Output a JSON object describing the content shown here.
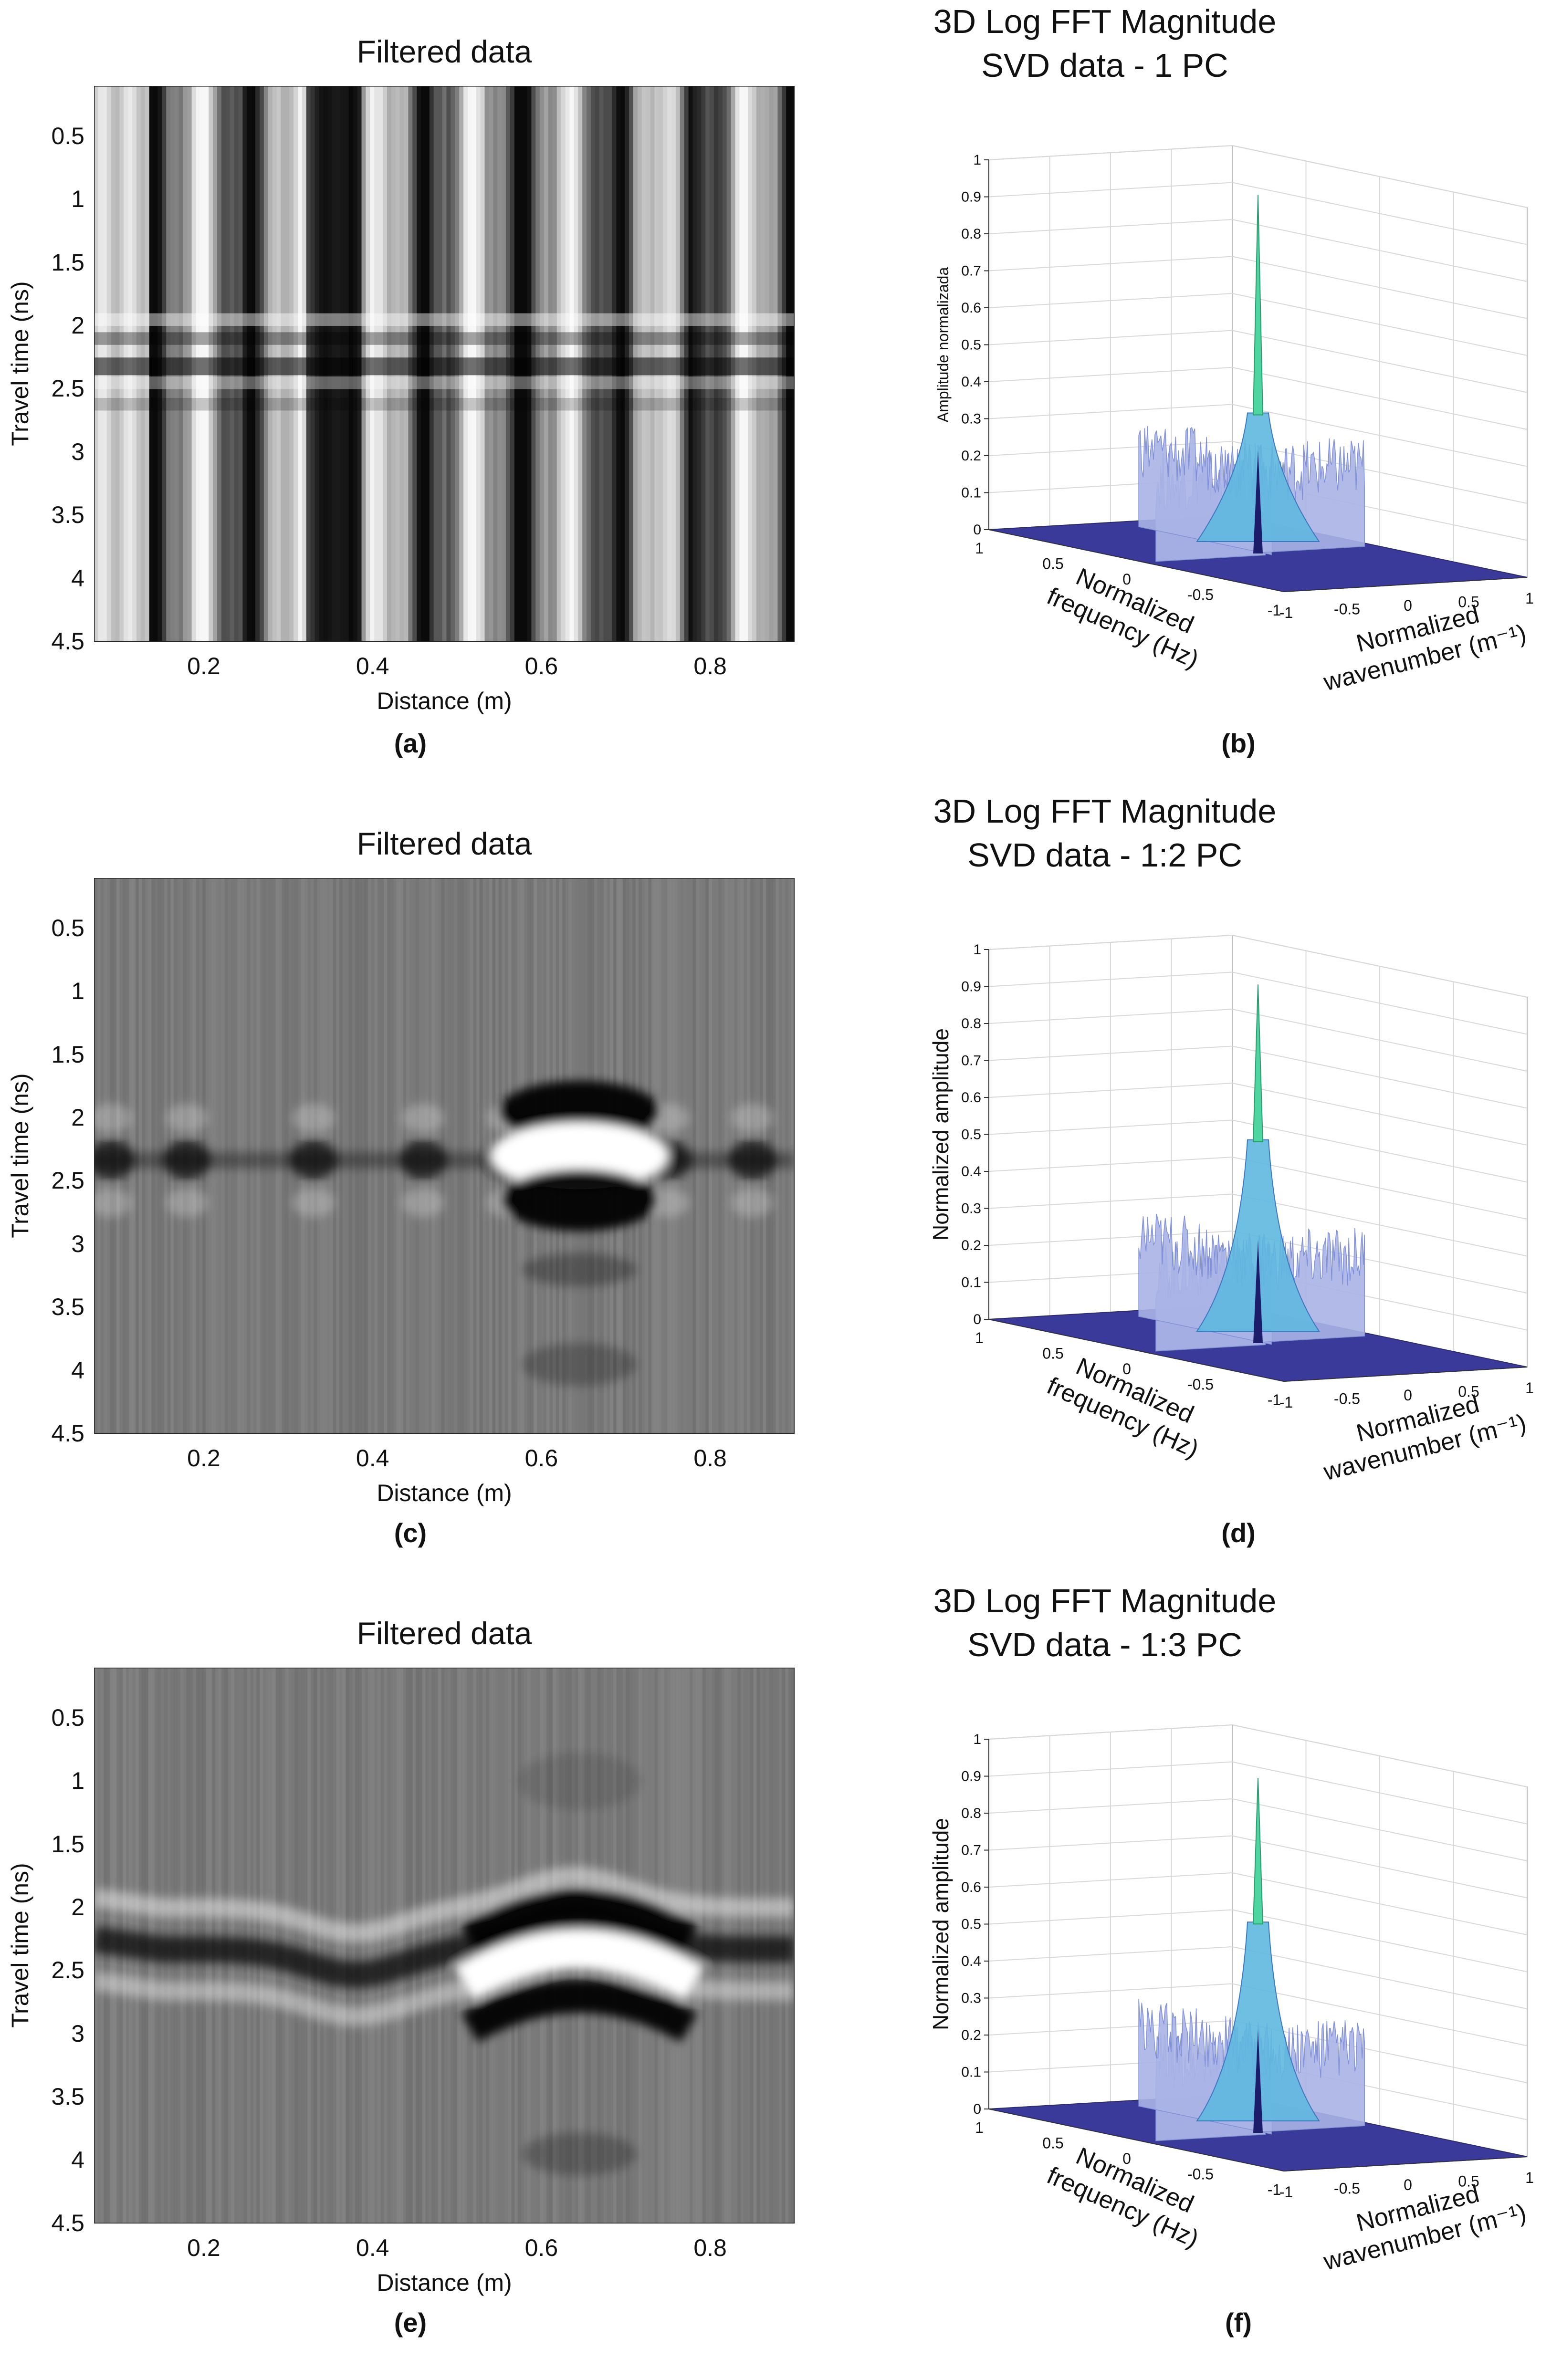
{
  "chart_data": [
    {
      "panel": "a",
      "type": "heatmap",
      "title": "Filtered data",
      "xlabel": "Distance (m)",
      "ylabel": "Travel time (ns)",
      "xlim": [
        0.07,
        0.9
      ],
      "ylim": [
        0.1,
        4.5
      ],
      "xticks": [
        "0.2",
        "0.4",
        "0.6",
        "0.8"
      ],
      "yticks": [
        "0.5",
        "1",
        "1.5",
        "2",
        "2.5",
        "3",
        "3.5",
        "4",
        "4.5"
      ],
      "colormap": "gray",
      "description_key": "strong vertical banding, horizontal stripes near 2-2.5 ns"
    },
    {
      "panel": "b",
      "type": "surface3d",
      "title_lines": [
        "3D Log FFT Magnitude",
        "SVD data - 1 PC"
      ],
      "zlabel": "Amplitude normalizada",
      "xlabel_lines": [
        "Normalized",
        "frequency (Hz)"
      ],
      "ylabel_lines": [
        "Normalized",
        "wavenumber (m⁻¹)"
      ],
      "zticks": [
        "0",
        "0.1",
        "0.2",
        "0.3",
        "0.4",
        "0.5",
        "0.6",
        "0.7",
        "0.8",
        "0.9",
        "1"
      ],
      "freq_ticks": [
        "1",
        "0.5",
        "0",
        "-0.5",
        "-1"
      ],
      "wn_ticks": [
        "-1",
        "-0.5",
        "0",
        "0.5",
        "1"
      ],
      "peak": 0.97,
      "shoulder": 0.38,
      "ridge": 0.3
    },
    {
      "panel": "c",
      "type": "heatmap",
      "title": "Filtered data",
      "xlabel": "Distance (m)",
      "ylabel": "Travel time (ns)",
      "xlim": [
        0.07,
        0.9
      ],
      "ylim": [
        0.1,
        4.5
      ],
      "xticks": [
        "0.2",
        "0.4",
        "0.6",
        "0.8"
      ],
      "yticks": [
        "0.5",
        "1",
        "1.5",
        "2",
        "2.5",
        "3",
        "3.5",
        "4",
        "4.5"
      ],
      "colormap": "gray",
      "description_key": "flat reflector at ~2.3 ns with strong anomaly at 0.6-0.7 m"
    },
    {
      "panel": "d",
      "type": "surface3d",
      "title_lines": [
        "3D Log FFT Magnitude",
        "SVD data - 1:2 PC"
      ],
      "zlabel": "Normalized amplitude",
      "xlabel_lines": [
        "Normalized",
        "frequency (Hz)"
      ],
      "ylabel_lines": [
        "Normalized",
        "wavenumber (m⁻¹)"
      ],
      "zticks": [
        "0",
        "0.1",
        "0.2",
        "0.3",
        "0.4",
        "0.5",
        "0.6",
        "0.7",
        "0.8",
        "0.9",
        "1"
      ],
      "freq_ticks": [
        "1",
        "0.5",
        "0",
        "-0.5",
        "-1"
      ],
      "wn_ticks": [
        "-1",
        "-0.5",
        "0",
        "0.5",
        "1"
      ],
      "peak": 0.97,
      "shoulder": 0.55,
      "ridge": 0.3
    },
    {
      "panel": "e",
      "type": "heatmap",
      "title": "Filtered data",
      "xlabel": "Distance (m)",
      "ylabel": "Travel time (ns)",
      "xlim": [
        0.07,
        0.9
      ],
      "ylim": [
        0.1,
        4.5
      ],
      "xticks": [
        "0.2",
        "0.4",
        "0.6",
        "0.8"
      ],
      "yticks": [
        "0.5",
        "1",
        "1.5",
        "2",
        "2.5",
        "3",
        "3.5",
        "4",
        "4.5"
      ],
      "colormap": "gray",
      "description_key": "hyperbolic reflections, strongest at 0.6-0.7 m around 2-2.7 ns"
    },
    {
      "panel": "f",
      "type": "surface3d",
      "title_lines": [
        "3D Log FFT Magnitude",
        "SVD data - 1:3 PC"
      ],
      "zlabel": "Normalized amplitude",
      "xlabel_lines": [
        "Normalized",
        "frequency (Hz)"
      ],
      "ylabel_lines": [
        "Normalized",
        "wavenumber (m⁻¹)"
      ],
      "zticks": [
        "0",
        "0.1",
        "0.2",
        "0.3",
        "0.4",
        "0.5",
        "0.6",
        "0.7",
        "0.8",
        "0.9",
        "1"
      ],
      "freq_ticks": [
        "1",
        "0.5",
        "0",
        "-0.5",
        "-1"
      ],
      "wn_ticks": [
        "-1",
        "-0.5",
        "0",
        "0.5",
        "1"
      ],
      "peak": 0.96,
      "shoulder": 0.57,
      "ridge": 0.3
    }
  ],
  "panel_labels": [
    "(a)",
    "(b)",
    "(c)",
    "(d)",
    "(e)",
    "(f)"
  ],
  "colors": {
    "surface_base": "#3a3a9a",
    "surface_mid": "#aab4e6",
    "surface_peak": "#4fd6a0",
    "grid": "#d8d8d8"
  }
}
